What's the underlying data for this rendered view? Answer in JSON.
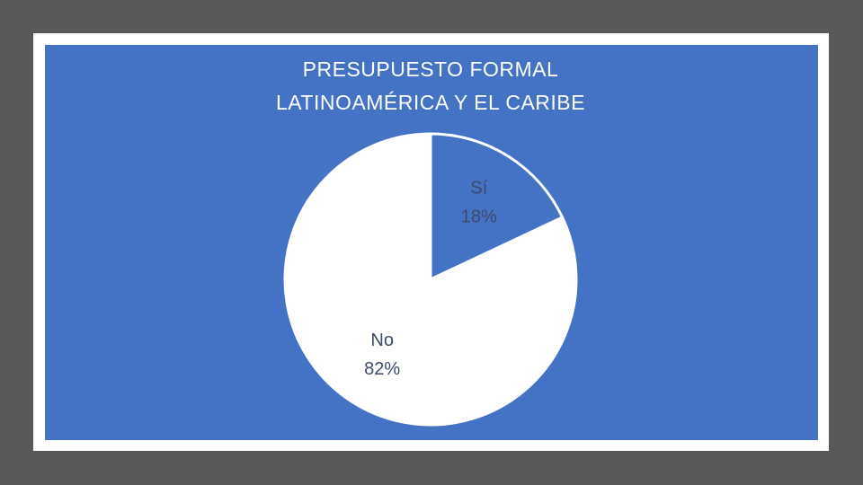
{
  "chart_data": {
    "type": "pie",
    "title": [
      "PRESUPUESTO FORMAL",
      "LATINOAMÉRICA Y EL CARIBE"
    ],
    "categories": [
      "Sí",
      "No"
    ],
    "values": [
      18,
      82
    ],
    "value_labels": [
      "18%",
      "82%"
    ],
    "colors": [
      "#4472c4",
      "#ffffff"
    ]
  }
}
